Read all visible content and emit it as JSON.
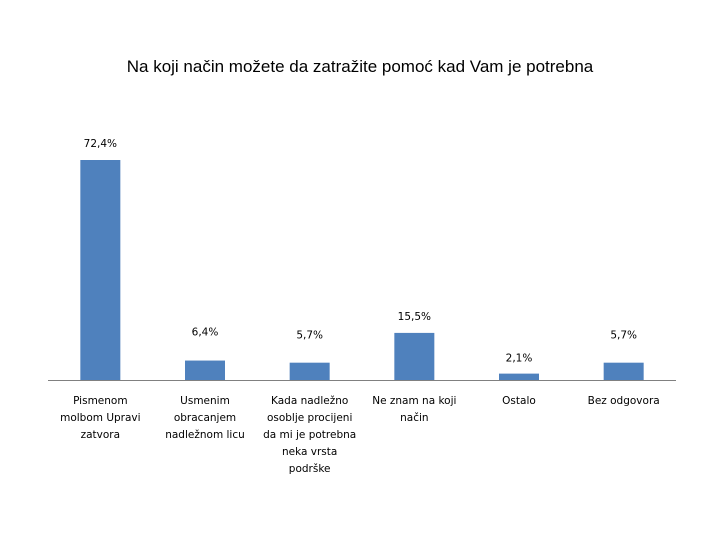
{
  "chart_data": {
    "type": "bar",
    "title": "Na koji način možete da zatražite pomoć kad Vam je potrebna",
    "xlabel": "",
    "ylabel": "",
    "categories": [
      [
        "Pismenom",
        "molbom Upravi",
        "zatvora"
      ],
      [
        "Usmenim",
        "obracanjem",
        "nadležnom licu"
      ],
      [
        "Kada nadležno",
        "osoblje procijeni",
        "da mi je potrebna",
        "neka vrsta",
        "podrške"
      ],
      [
        "Ne znam na koji",
        "način"
      ],
      [
        "Ostalo"
      ],
      [
        "Bez odgovora"
      ]
    ],
    "values": [
      72.4,
      6.4,
      5.7,
      15.5,
      2.1,
      5.7
    ],
    "data_labels": [
      "72,4%",
      "6,4%",
      "5,7%",
      "15,5%",
      "2,1%",
      "5,7%"
    ],
    "ylim": [
      0,
      80
    ],
    "grid": false,
    "legend": "none",
    "colors": {
      "bar": "#4F81BD",
      "axis": "#808080"
    }
  }
}
